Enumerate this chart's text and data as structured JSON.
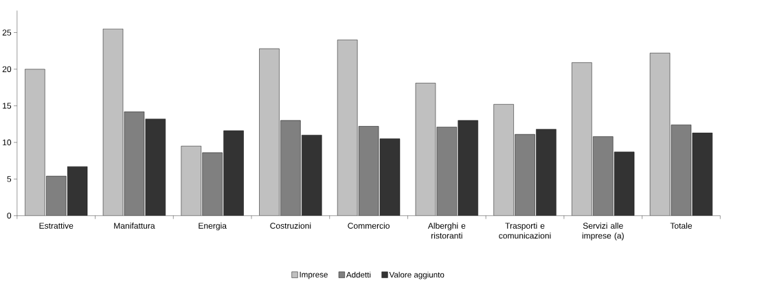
{
  "chart_data": {
    "type": "bar",
    "categories": [
      "Estrattive",
      "Manifattura",
      "Energia",
      "Costruzioni",
      "Commercio",
      "Alberghi e ristoranti",
      "Trasporti e comunicazioni",
      "Servizi alle imprese (a)",
      "Totale"
    ],
    "series": [
      {
        "name": "Imprese",
        "color": "#c0c0c0",
        "values": [
          20.0,
          25.5,
          9.5,
          22.8,
          24.0,
          18.1,
          15.2,
          20.9,
          22.2
        ]
      },
      {
        "name": "Addetti",
        "color": "#808080",
        "values": [
          5.4,
          14.2,
          8.6,
          13.0,
          12.2,
          12.1,
          11.1,
          10.8,
          12.4
        ]
      },
      {
        "name": "Valore aggiunto",
        "color": "#333333",
        "values": [
          6.7,
          13.2,
          11.6,
          11.0,
          10.5,
          13.0,
          11.8,
          8.7,
          11.3
        ]
      }
    ],
    "ylim": [
      0,
      28
    ],
    "yticks": [
      0,
      5,
      10,
      15,
      20,
      25
    ],
    "grid": false,
    "legend": "bottom"
  }
}
